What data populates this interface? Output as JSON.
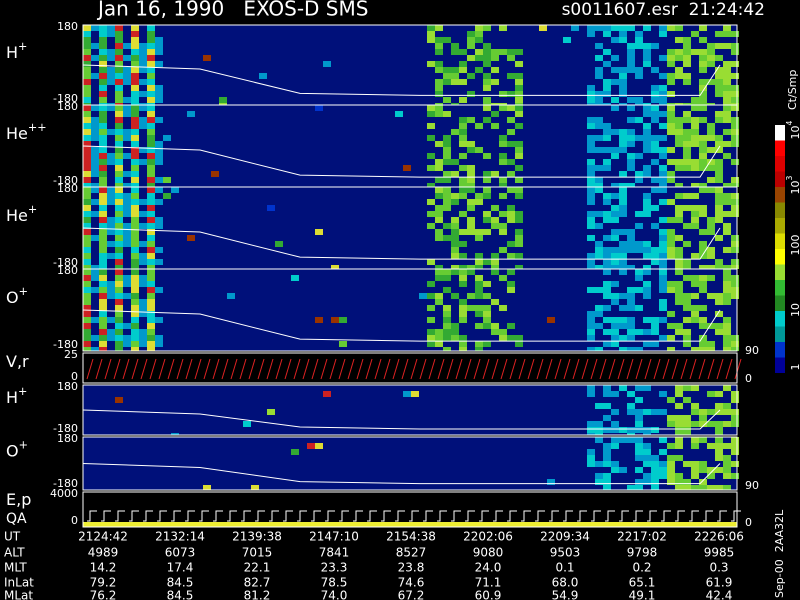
{
  "header": {
    "title": "Jan 16, 1990   EXOS-D SMS",
    "file_time": "s0011607.esr  21:24:42"
  },
  "panels": [
    {
      "label": "H",
      "sup": "+",
      "ticks": [
        "180",
        "-180"
      ]
    },
    {
      "label": "He",
      "sup": "++",
      "ticks": [
        "180",
        "-180"
      ]
    },
    {
      "label": "He",
      "sup": "+",
      "ticks": [
        "180",
        "-180"
      ]
    },
    {
      "label": "O",
      "sup": "+",
      "ticks": [
        "180",
        "-180"
      ]
    },
    {
      "label": "V,r",
      "ticks": [
        "25",
        "0"
      ],
      "right": [
        "90",
        "0"
      ]
    },
    {
      "label": "H",
      "sup": "+",
      "ticks": [
        "180",
        "-180"
      ]
    },
    {
      "label": "O",
      "sup": "+",
      "ticks": [
        "180",
        "-180"
      ],
      "right": [
        "90"
      ]
    },
    {
      "label": "E,p",
      "label2": "QA",
      "ticks": [
        "4000",
        "0"
      ],
      "right": [
        "0"
      ]
    }
  ],
  "colorbar": {
    "unit": "Ct/Smp",
    "labels": [
      {
        "base": "10",
        "sup": "4"
      },
      {
        "base": "10",
        "sup": "3"
      },
      {
        "base": "100"
      },
      {
        "base": "10"
      },
      {
        "base": "1"
      }
    ]
  },
  "footer": "Sep-00  2AA32L",
  "table": {
    "row_labels": [
      "UT",
      "ALT",
      "MLT",
      "InLat",
      "MLat"
    ],
    "rows": [
      [
        "2124:42",
        "2132:14",
        "2139:38",
        "2147:10",
        "2154:38",
        "2202:06",
        "2209:34",
        "2217:02",
        "2226:06"
      ],
      [
        "4989",
        "6073",
        "7015",
        "7841",
        "8527",
        "9080",
        "9503",
        "9798",
        "9985"
      ],
      [
        "14.2",
        "17.4",
        "22.1",
        "23.3",
        "23.8",
        "24.0",
        "0.1",
        "0.2",
        "0.3"
      ],
      [
        "79.2",
        "84.5",
        "82.7",
        "78.5",
        "74.6",
        "71.1",
        "68.0",
        "65.1",
        "61.9"
      ],
      [
        "76.2",
        "84.5",
        "81.2",
        "74.0",
        "67.2",
        "60.9",
        "54.9",
        "49.1",
        "42.4"
      ]
    ]
  }
}
